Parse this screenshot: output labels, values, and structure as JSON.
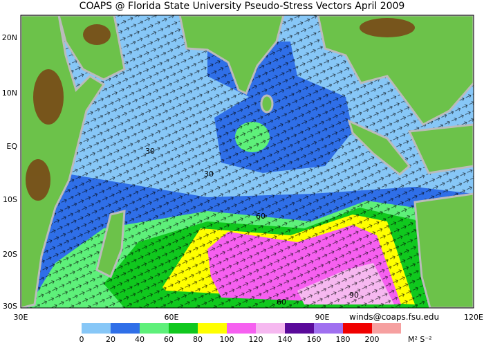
{
  "title": "COAPS @ Florida State University Pseudo-Stress Vectors April 2009",
  "lat_labels": [
    "20N",
    "10N",
    "EQ",
    "10S",
    "20S",
    "30S"
  ],
  "lon_labels": [
    "30E",
    "60E",
    "90E",
    "120E"
  ],
  "credit": "winds@coaps.fsu.edu",
  "contour_labels": [
    "30",
    "30",
    "60",
    "60",
    "90"
  ],
  "colorbar": {
    "ticks": [
      0,
      20,
      40,
      60,
      80,
      100,
      120,
      140,
      160,
      180,
      200
    ],
    "colors": [
      "#87c7f7",
      "#2f6fe8",
      "#5ef07a",
      "#10c81e",
      "#ffff00",
      "#f660f0",
      "#f6b8f0",
      "#5a0a9a",
      "#a070f0",
      "#f00000",
      "#f6a0a0"
    ],
    "unit": "M² S⁻²"
  }
}
